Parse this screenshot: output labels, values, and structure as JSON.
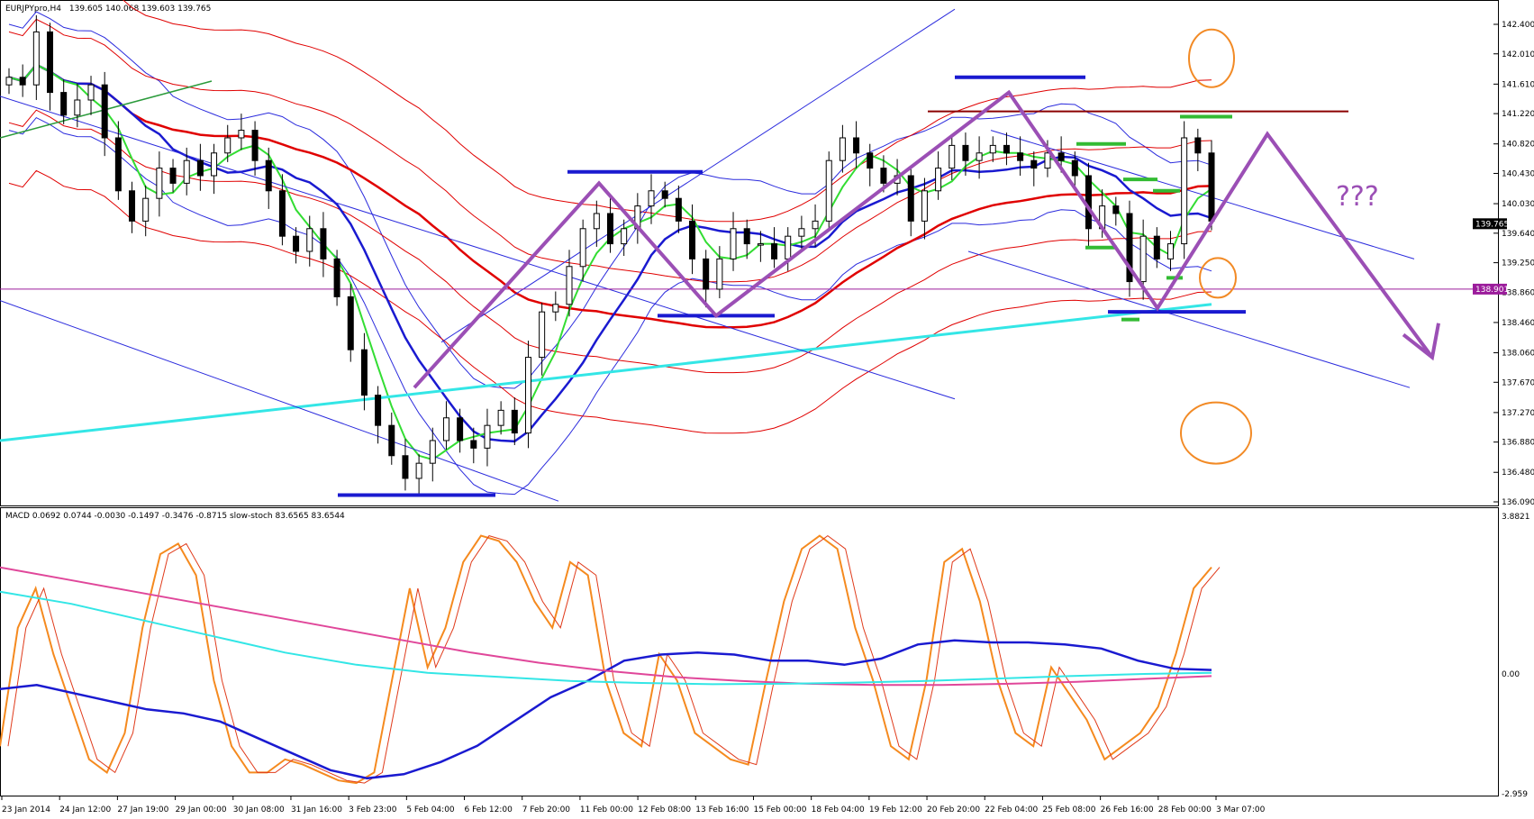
{
  "header": {
    "symbol_text": "EURJPYpro,H4",
    "ohlc_text": "139.605 140.068 139.603 139.765"
  },
  "indicator_header": {
    "text": "MACD 0.0692 0.0744 -0.0030 -0.1497 -0.3476 -0.8715  slow-stoch 83.6565 83.6544"
  },
  "colors": {
    "bull_candle": "#ffffff",
    "bear_candle": "#000000",
    "ma_red": "#e00000",
    "ma_blue": "#1a1ad0",
    "ma_green": "#33dd33",
    "ma_cyan": "#33e6e6",
    "bands": "#2b2bdd",
    "channel": "#2b2bdd",
    "pattern": "#9b4fb5",
    "circle": "#f28a25",
    "resistance": "#8b0000",
    "stoch": "#f58a1f",
    "macd_pink": "#e0479a"
  },
  "annotation_text": "???",
  "chart_data": [
    {
      "type": "candlestick",
      "title": "EURJPYpro,H4",
      "ylim": [
        136.09,
        142.6
      ],
      "yticks": [
        142.4,
        142.01,
        141.61,
        141.22,
        140.82,
        140.43,
        140.03,
        139.64,
        139.25,
        138.86,
        138.46,
        138.06,
        137.67,
        137.27,
        136.88,
        136.48,
        136.09
      ],
      "ytick_labels": [
        "142.400",
        "142.010",
        "141.610",
        "141.220",
        "140.820",
        "140.430",
        "140.030",
        "139.640",
        "139.250",
        "138.860",
        "138.460",
        "138.060",
        "137.670",
        "137.270",
        "136.880",
        "136.480",
        "136.090"
      ],
      "current_price": 139.765,
      "current_price_label": "139.765",
      "hline_price": 138.901,
      "hline_label": "138.901",
      "resistance_level": 141.25,
      "xtick_labels": [
        "23 Jan 2014",
        "24 Jan 12:00",
        "27 Jan 19:00",
        "29 Jan 00:00",
        "30 Jan 08:00",
        "31 Jan 16:00",
        "3 Feb 23:00",
        "5 Feb 04:00",
        "6 Feb 12:00",
        "7 Feb 20:00",
        "11 Feb 00:00",
        "12 Feb 08:00",
        "13 Feb 16:00",
        "15 Feb 00:00",
        "18 Feb 04:00",
        "19 Feb 12:00",
        "20 Feb 20:00",
        "22 Feb 04:00",
        "25 Feb 08:00",
        "26 Feb 16:00",
        "28 Feb 00:00",
        "3 Mar 07:00"
      ],
      "close_path": [
        141.7,
        141.6,
        142.3,
        141.5,
        141.2,
        141.4,
        141.6,
        140.9,
        140.2,
        139.8,
        140.1,
        140.5,
        140.3,
        140.6,
        140.4,
        140.7,
        140.9,
        141.0,
        140.6,
        140.2,
        139.6,
        139.4,
        139.7,
        139.3,
        138.8,
        138.1,
        137.5,
        137.1,
        136.7,
        136.4,
        136.6,
        136.9,
        137.2,
        136.9,
        136.8,
        137.1,
        137.3,
        137.0,
        138.0,
        138.6,
        138.7,
        139.2,
        139.7,
        139.9,
        139.5,
        139.7,
        140.0,
        140.2,
        140.1,
        139.8,
        139.3,
        138.9,
        139.3,
        139.7,
        139.5,
        139.5,
        139.3,
        139.6,
        139.7,
        139.8,
        140.6,
        140.9,
        140.7,
        140.5,
        140.3,
        140.4,
        139.8,
        140.2,
        140.5,
        140.8,
        140.6,
        140.7,
        140.8,
        140.7,
        140.6,
        140.5,
        140.7,
        140.6,
        140.4,
        139.7,
        140.0,
        139.9,
        139.0,
        139.6,
        139.3,
        139.5,
        140.9,
        140.7,
        139.8
      ]
    },
    {
      "type": "line",
      "title": "MACD / slow-stoch",
      "ylim": [
        -2.959,
        3.8821
      ],
      "ytick_labels": [
        "3.8821",
        "0.00",
        "-2.959"
      ],
      "series": [
        {
          "name": "slow-stoch",
          "color": "#f58a1f",
          "values": [
            15,
            60,
            75,
            50,
            30,
            10,
            5,
            20,
            60,
            88,
            92,
            80,
            40,
            15,
            5,
            5,
            10,
            8,
            5,
            2,
            1,
            5,
            40,
            75,
            45,
            60,
            85,
            95,
            93,
            85,
            70,
            60,
            85,
            80,
            40,
            20,
            15,
            50,
            40,
            20,
            15,
            10,
            8,
            40,
            70,
            90,
            95,
            90,
            60,
            40,
            15,
            10,
            40,
            85,
            90,
            70,
            40,
            20,
            15,
            45,
            35,
            25,
            10,
            15,
            20,
            30,
            50,
            75,
            83
          ]
        },
        {
          "name": "macd-main",
          "color": "#1a1ad0",
          "values": [
            -0.4,
            -0.3,
            -0.5,
            -0.7,
            -0.9,
            -1.0,
            -1.2,
            -1.6,
            -2.0,
            -2.4,
            -2.6,
            -2.5,
            -2.2,
            -1.8,
            -1.2,
            -0.6,
            -0.2,
            0.3,
            0.45,
            0.5,
            0.45,
            0.3,
            0.3,
            0.2,
            0.35,
            0.7,
            0.8,
            0.75,
            0.75,
            0.7,
            0.6,
            0.3,
            0.1,
            0.07
          ]
        },
        {
          "name": "macd-signal",
          "color": "#e0479a",
          "values": [
            2.6,
            2.3,
            2.0,
            1.7,
            1.4,
            1.1,
            0.8,
            0.5,
            0.25,
            0.05,
            -0.1,
            -0.2,
            -0.27,
            -0.3,
            -0.3,
            -0.27,
            -0.22,
            -0.15,
            -0.08
          ]
        },
        {
          "name": "macd-ma",
          "color": "#33e6e6",
          "values": [
            2.0,
            1.7,
            1.3,
            0.9,
            0.5,
            0.2,
            0.0,
            -0.1,
            -0.2,
            -0.25,
            -0.28,
            -0.27,
            -0.24,
            -0.2,
            -0.14,
            -0.08,
            -0.03,
            0.0
          ]
        }
      ]
    }
  ]
}
